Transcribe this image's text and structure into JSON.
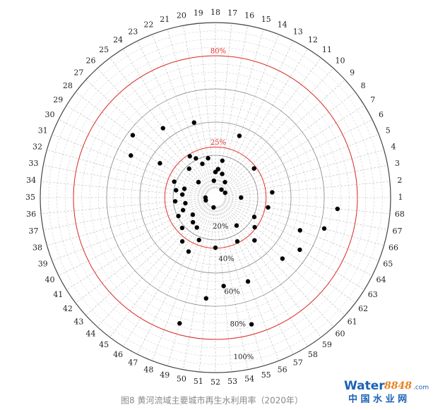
{
  "chart_data": {
    "type": "polar-scatter",
    "categories": [
      "1",
      "2",
      "3",
      "4",
      "5",
      "6",
      "7",
      "8",
      "9",
      "10",
      "11",
      "12",
      "13",
      "14",
      "15",
      "16",
      "17",
      "18",
      "19",
      "20",
      "21",
      "22",
      "23",
      "24",
      "25",
      "26",
      "27",
      "28",
      "29",
      "30",
      "31",
      "32",
      "33",
      "34",
      "35",
      "36",
      "37",
      "38",
      "39",
      "40",
      "41",
      "42",
      "43",
      "44",
      "45",
      "46",
      "47",
      "48",
      "49",
      "50",
      "51",
      "52",
      "53",
      "54",
      "55",
      "56",
      "57",
      "58",
      "59",
      "60",
      "61",
      "62",
      "63",
      "64",
      "65",
      "66",
      "67",
      "68"
    ],
    "values": [
      9.9,
      28.8,
      null,
      null,
      null,
      1,
      null,
      23.6,
      null,
      null,
      0.5,
      5.4,
      null,
      34.4,
      9.3,
      17.1,
      11.7,
      9.9,
      4.7,
      18.6,
      41.5,
      16.3,
      20.9,
      23.8,
      46.9,
      18.0,
      8.3,
      56.9,
      33.8,
      51.4,
      21.1,
      13.9,
      18.6,
      14.5,
      0.5,
      18.8,
      12.9,
      0.5,
      15.4,
      19.4,
      null,
      11.6,
      21.6,
      14.6,
      27.6,
      15.7,
      30.8,
      21.9,
      73.3,
      0.5,
      55.5,
      24.7,
      48.0,
      null,
      73.9,
      48.7,
      24.0,
      null,
      15.6,
      29.4,
      49.1,
      24.1,
      54.2,
      20.6,
      49.1,
      62.6,
      26.7,
      68.3
    ],
    "color": "#000000",
    "rlim": [
      0,
      100
    ],
    "rticks": [
      {
        "value": 20,
        "label": "20%"
      },
      {
        "value": 40,
        "label": "40%"
      },
      {
        "value": 60,
        "label": "60%"
      },
      {
        "value": 80,
        "label": "80%"
      },
      {
        "value": 100,
        "label": "100%"
      }
    ],
    "reference_rings": [
      {
        "value": 25,
        "label": "25%"
      },
      {
        "value": 80,
        "label": "80%"
      }
    ],
    "reference_color": "#e0302a",
    "grid": true,
    "caption": "图8 黄河流域主要城市再生水利用率（2020年）"
  },
  "watermark": {
    "brand": "Water",
    "number": "8848",
    "domain": ".com",
    "name": "中 国 水 业 网"
  }
}
